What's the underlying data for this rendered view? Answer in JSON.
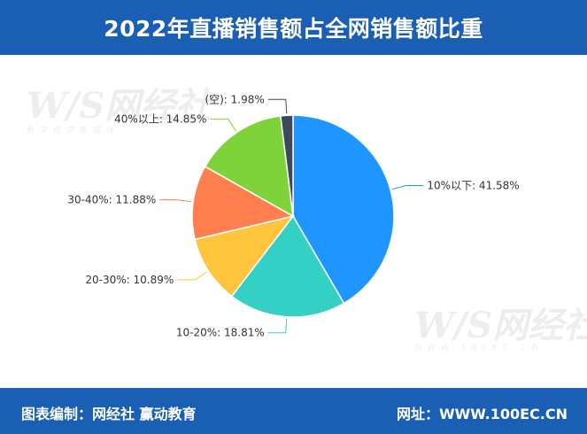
{
  "header": {
    "title": "2022年直播销售额占全网销售额比重"
  },
  "footer": {
    "source_label": "图表编制：",
    "source_value": "网经社 赢动教育",
    "site_label": "网址：",
    "site_value": "WWW.100EC.CN"
  },
  "watermark": {
    "logo": "W/S网经社",
    "sub": "数字经济新媒体",
    "url": "WWW.100EC.CN"
  },
  "colors": {
    "header_bg": "#1a5fb4",
    "slice_stroke": "#ffffff"
  },
  "chart_data": {
    "type": "pie",
    "title": "2022年直播销售额占全网销售额比重",
    "unit": "%",
    "slices": [
      {
        "name": "10%以下",
        "value": 41.58,
        "label": "10%以下: 41.58%",
        "color": "#1f96ff"
      },
      {
        "name": "10-20%",
        "value": 18.81,
        "label": "10-20%: 18.81%",
        "color": "#34d0c6"
      },
      {
        "name": "20-30%",
        "value": 10.89,
        "label": "20-30%: 10.89%",
        "color": "#ffc53d"
      },
      {
        "name": "30-40%",
        "value": 11.88,
        "label": "30-40%: 11.88%",
        "color": "#ff7f4f"
      },
      {
        "name": "40%以上",
        "value": 14.85,
        "label": "40%以上: 14.85%",
        "color": "#7ed23a"
      },
      {
        "name": "(空)",
        "value": 1.98,
        "label": "(空): 1.98%",
        "color": "#3d4a5a"
      }
    ]
  }
}
